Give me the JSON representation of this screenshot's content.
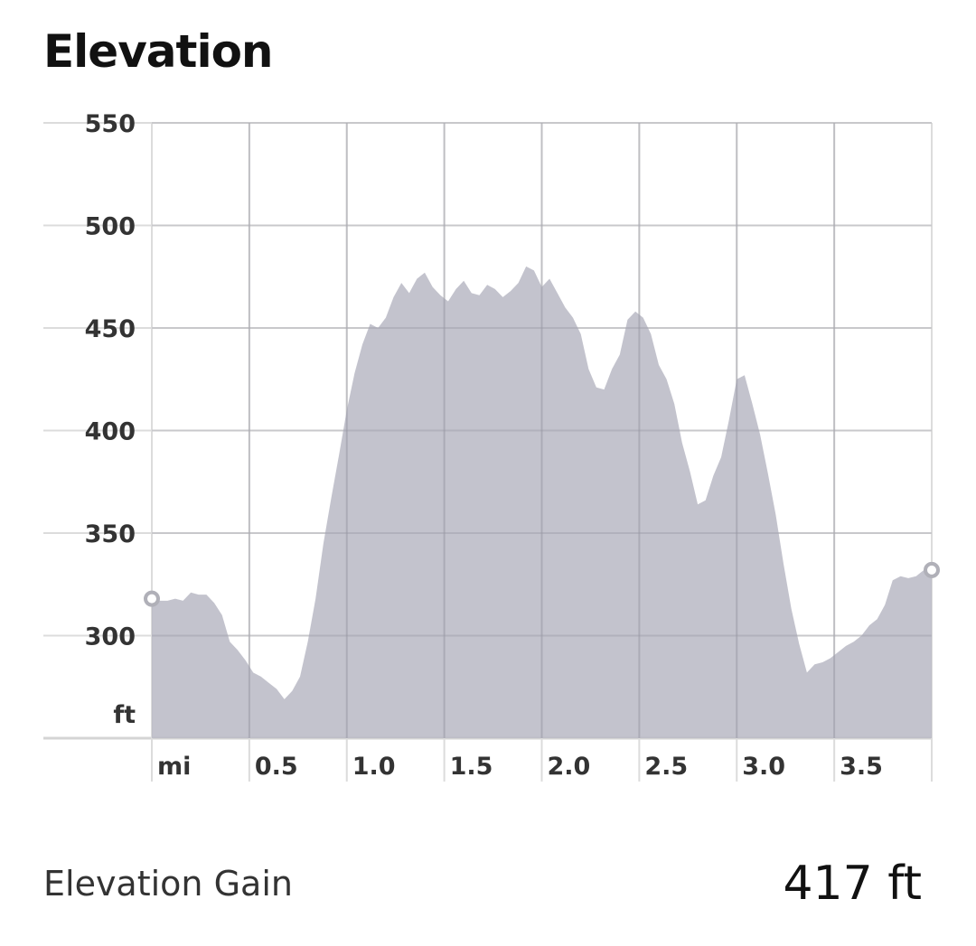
{
  "header": {
    "title": "Elevation"
  },
  "chart_data": {
    "type": "area",
    "xlabel": "mi",
    "ylabel": "ft",
    "xlim": [
      0,
      4.0
    ],
    "ylim": [
      250,
      550
    ],
    "x_ticks": [
      0,
      0.5,
      1.0,
      1.5,
      2.0,
      2.5,
      3.0,
      3.5
    ],
    "x_tick_labels": [
      "mi",
      "0.5",
      "1.0",
      "1.5",
      "2.0",
      "2.5",
      "3.0",
      "3.5"
    ],
    "y_ticks": [
      250,
      300,
      350,
      400,
      450,
      500,
      550
    ],
    "y_tick_labels": [
      "ft",
      "300",
      "350",
      "400",
      "450",
      "500",
      "550"
    ],
    "grid": true,
    "fill_color": "#b8b8c4",
    "series": [
      {
        "x": [
          0,
          0.04,
          0.08,
          0.12,
          0.16,
          0.2,
          0.24,
          0.28,
          0.32,
          0.36,
          0.4,
          0.44,
          0.48,
          0.52,
          0.56,
          0.6,
          0.64,
          0.68,
          0.72,
          0.76,
          0.8,
          0.84,
          0.88,
          0.92,
          0.96,
          1.0,
          1.04,
          1.08,
          1.12,
          1.16,
          1.2,
          1.24,
          1.28,
          1.32,
          1.36,
          1.4,
          1.44,
          1.48,
          1.52,
          1.56,
          1.6,
          1.64,
          1.68,
          1.72,
          1.76,
          1.8,
          1.84,
          1.88,
          1.92,
          1.96,
          2.0,
          2.04,
          2.08,
          2.12,
          2.16,
          2.2,
          2.24,
          2.28,
          2.32,
          2.36,
          2.4,
          2.44,
          2.48,
          2.52,
          2.56,
          2.6,
          2.64,
          2.68,
          2.72,
          2.76,
          2.8,
          2.84,
          2.88,
          2.92,
          2.96,
          3.0,
          3.04,
          3.08,
          3.12,
          3.16,
          3.2,
          3.24,
          3.28,
          3.32,
          3.36,
          3.4,
          3.44,
          3.48,
          3.52,
          3.56,
          3.6,
          3.64,
          3.68,
          3.72,
          3.76,
          3.8,
          3.84,
          3.88,
          3.92,
          3.96,
          4.0
        ],
        "y": [
          318,
          317,
          317,
          318,
          317,
          321,
          320,
          320,
          316,
          310,
          297,
          293,
          288,
          282,
          280,
          277,
          274,
          269,
          273,
          280,
          297,
          318,
          345,
          367,
          388,
          410,
          428,
          442,
          452,
          450,
          455,
          465,
          472,
          467,
          474,
          477,
          470,
          466,
          463,
          469,
          473,
          467,
          466,
          471,
          469,
          465,
          468,
          472,
          480,
          478,
          470,
          474,
          467,
          460,
          455,
          447,
          430,
          421,
          420,
          430,
          437,
          454,
          458,
          455,
          447,
          432,
          425,
          413,
          394,
          380,
          364,
          366,
          378,
          387,
          405,
          425,
          427,
          413,
          398,
          379,
          359,
          335,
          313,
          296,
          282,
          286,
          287,
          289,
          292,
          295,
          297,
          300,
          305,
          308,
          315,
          327,
          329,
          328,
          329,
          332,
          332
        ]
      }
    ]
  },
  "stats": {
    "label": "Elevation Gain",
    "value": "417 ft"
  }
}
